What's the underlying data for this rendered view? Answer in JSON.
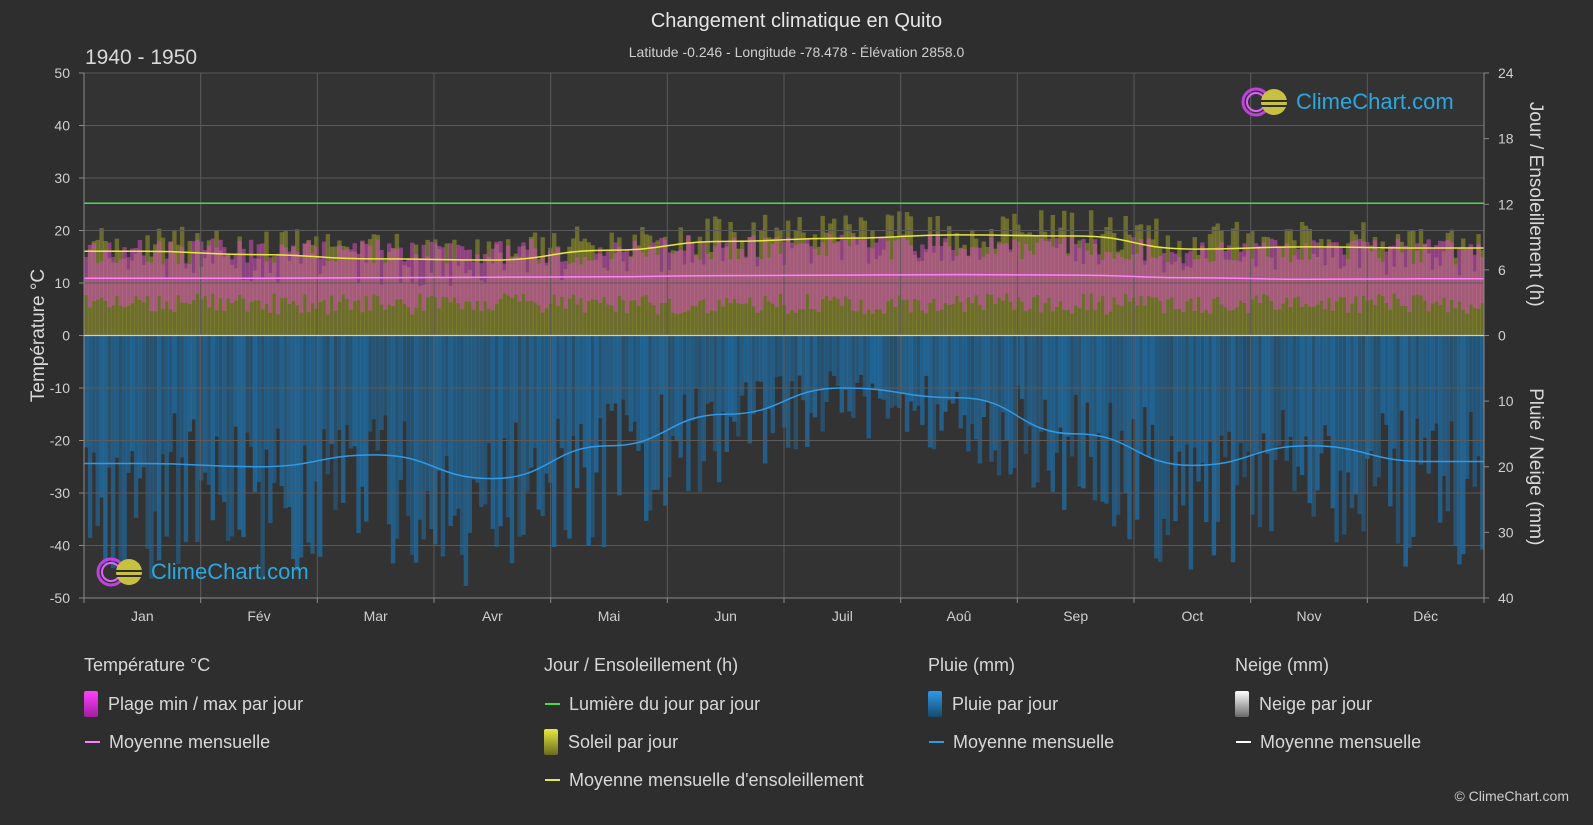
{
  "title": "Changement climatique en Quito",
  "subtitle": "Latitude -0.246 - Longitude -78.478 - Élévation 2858.0",
  "period": "1940 - 1950",
  "brand": "ClimeChart.com",
  "copyright": "© ClimeChart.com",
  "colors": {
    "background": "#2e2e2e",
    "daylight": "#44dd44",
    "sunshine_fill": "#9a9a2a",
    "sunshine_line": "#e8e840",
    "temp_band": "#d050b8",
    "temp_line": "#ff80ff",
    "rain_fill": "#1f6fa8",
    "rain_line": "#2f9ae8",
    "snow_line": "#ffffff",
    "logo_text": "#2aa8e0"
  },
  "legend": {
    "temperature": {
      "header": "Température °C",
      "range": "Plage min / max par jour",
      "mean": "Moyenne mensuelle"
    },
    "sun": {
      "header": "Jour / Ensoleillement (h)",
      "daylight": "Lumière du jour par jour",
      "sunshine": "Soleil par jour",
      "mean": "Moyenne mensuelle d'ensoleillement"
    },
    "rain": {
      "header": "Pluie (mm)",
      "daily": "Pluie par jour",
      "mean": "Moyenne mensuelle"
    },
    "snow": {
      "header": "Neige (mm)",
      "daily": "Neige par jour",
      "mean": "Moyenne mensuelle"
    }
  },
  "chart_data": {
    "type": "line",
    "categories": [
      "Jan",
      "Fév",
      "Mar",
      "Avr",
      "Mai",
      "Jun",
      "Juil",
      "Aoû",
      "Sep",
      "Oct",
      "Nov",
      "Déc"
    ],
    "y_left": {
      "label": "Température °C",
      "ticks": [
        50,
        40,
        30,
        20,
        10,
        0,
        -10,
        -20,
        -30,
        -40,
        -50
      ],
      "range": [
        -50,
        50
      ]
    },
    "y_right_top": {
      "label": "Jour / Ensoleillement (h)",
      "ticks": [
        24,
        18,
        12,
        6,
        0
      ],
      "range": [
        0,
        24
      ]
    },
    "y_right_bottom": {
      "label": "Pluie / Neige (mm)",
      "ticks": [
        0,
        10,
        20,
        30,
        40
      ],
      "range": [
        0,
        40
      ]
    },
    "grid": true,
    "series": [
      {
        "name": "Lumière du jour par jour",
        "axis": "hours",
        "values": [
          12.1,
          12.1,
          12.1,
          12.1,
          12.1,
          12.1,
          12.1,
          12.1,
          12.1,
          12.1,
          12.1,
          12.1
        ]
      },
      {
        "name": "Moyenne mensuelle d'ensoleillement",
        "axis": "hours",
        "values": [
          7.7,
          7.4,
          7.0,
          6.9,
          7.8,
          8.6,
          8.9,
          9.2,
          9.1,
          7.9,
          8.1,
          8.0
        ]
      },
      {
        "name": "Moyenne mensuelle",
        "role": "temperature_mean",
        "axis": "temperature",
        "values": [
          10.9,
          10.9,
          11.0,
          11.1,
          11.2,
          11.4,
          11.5,
          11.6,
          11.5,
          11.0,
          10.7,
          10.8
        ]
      },
      {
        "name": "Plage min / max par jour",
        "role": "temperature_range",
        "axis": "temperature",
        "min": [
          6,
          6,
          6,
          6,
          6,
          6,
          6,
          6,
          6,
          6,
          6,
          6
        ],
        "max": [
          16,
          16,
          16,
          16,
          16,
          17,
          17,
          17,
          17,
          16,
          16,
          16
        ]
      },
      {
        "name": "Moyenne mensuelle",
        "role": "rain_mean",
        "axis": "rain",
        "values": [
          19.5,
          20.0,
          18.2,
          21.8,
          16.8,
          12.0,
          8.0,
          9.5,
          15.0,
          19.8,
          16.8,
          19.2
        ]
      },
      {
        "name": "Moyenne mensuelle",
        "role": "snow_mean",
        "axis": "rain",
        "values": [
          0,
          0,
          0,
          0,
          0,
          0,
          0,
          0,
          0,
          0,
          0,
          0
        ]
      }
    ]
  }
}
